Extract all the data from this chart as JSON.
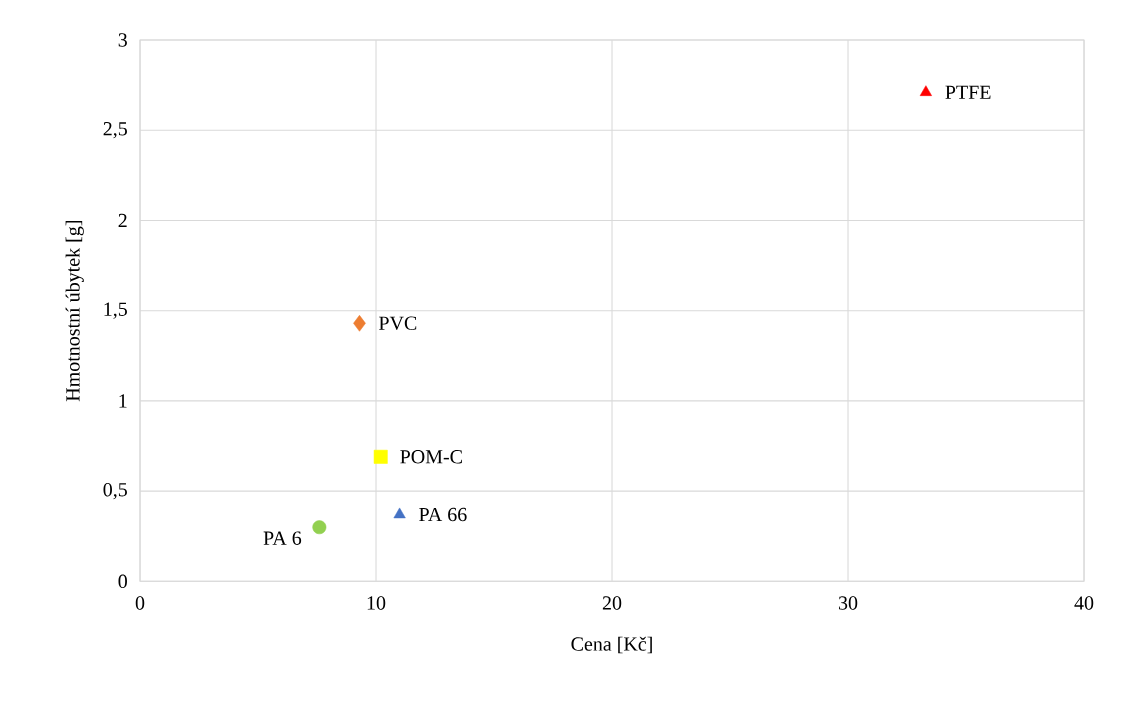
{
  "chart_data": {
    "type": "scatter",
    "xlabel": "Cena [Kč]",
    "ylabel": "Hmotnostní úbytek [g]",
    "xlim": [
      0,
      40
    ],
    "xticks": [
      0,
      10,
      20,
      30,
      40
    ],
    "ylim": [
      0,
      3
    ],
    "yticks": [
      0,
      {
        "value": 0.5,
        "label": "0,5"
      },
      1,
      {
        "value": 1.5,
        "label": "1,5"
      },
      2,
      {
        "value": 2.5,
        "label": "2,5"
      },
      3
    ],
    "grid": true,
    "series": [
      {
        "name": "PTFE",
        "color": "#ff0000",
        "marker": "triangle",
        "x": [
          33.3
        ],
        "values": [
          2.71
        ]
      },
      {
        "name": "PVC",
        "color": "#ed7d31",
        "marker": "diamond",
        "x": [
          9.3
        ],
        "values": [
          1.43
        ]
      },
      {
        "name": "POM-C",
        "color": "#ffff00",
        "marker": "square",
        "x": [
          10.2
        ],
        "values": [
          0.69
        ]
      },
      {
        "name": "PA 66",
        "color": "#4472c4",
        "marker": "triangle",
        "x": [
          11.0
        ],
        "values": [
          0.37
        ]
      },
      {
        "name": "PA 6",
        "color": "#92d050",
        "marker": "circle",
        "x": [
          7.6
        ],
        "values": [
          0.3
        ]
      }
    ]
  }
}
